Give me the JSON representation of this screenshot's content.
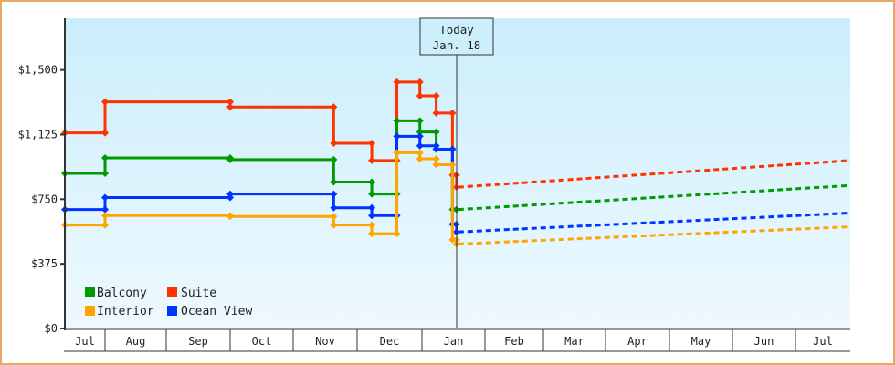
{
  "chart_data": {
    "type": "line",
    "title": "",
    "xlabel": "",
    "ylabel": "",
    "ylim": [
      0,
      1800
    ],
    "yticks": [
      {
        "label": "$0",
        "value": 0
      },
      {
        "label": "$375",
        "value": 375
      },
      {
        "label": "$750",
        "value": 750
      },
      {
        "label": "$1,125",
        "value": 1125
      },
      {
        "label": "$1,500",
        "value": 1500
      }
    ],
    "x_months": [
      "Jul",
      "Aug",
      "Sep",
      "Oct",
      "Nov",
      "Dec",
      "Jan",
      "Feb",
      "Mar",
      "Apr",
      "May",
      "Jun",
      "Jul"
    ],
    "today_marker": {
      "line1": "Today",
      "line2": "Jan. 18"
    },
    "legend": [
      {
        "name": "Balcony",
        "color": "#009900"
      },
      {
        "name": "Suite",
        "color": "#ff3300"
      },
      {
        "name": "Interior",
        "color": "#ffa500"
      },
      {
        "name": "Ocean View",
        "color": "#0033ff"
      }
    ],
    "grid": false,
    "series": [
      {
        "name": "Suite",
        "color": "#ff3300",
        "historical": [
          [
            "Jul 1",
            1135
          ],
          [
            "Aug 1",
            1135
          ],
          [
            "Aug 1",
            1315
          ],
          [
            "Oct 1",
            1315
          ],
          [
            "Oct 1",
            1285
          ],
          [
            "Nov 20",
            1285
          ],
          [
            "Nov 20",
            1075
          ],
          [
            "Dec 8",
            1075
          ],
          [
            "Dec 8",
            975
          ],
          [
            "Dec 20",
            975
          ],
          [
            "Dec 20",
            1430
          ],
          [
            "Dec 31",
            1430
          ],
          [
            "Dec 31",
            1350
          ],
          [
            "Jan 8",
            1350
          ],
          [
            "Jan 8",
            1250
          ],
          [
            "Jan 16",
            1250
          ],
          [
            "Jan 16",
            890
          ],
          [
            "Jan 18",
            890
          ],
          [
            "Jan 18",
            820
          ]
        ],
        "forecast_start": [
          "Jan 18",
          820
        ],
        "forecast_end": [
          "Jul 31",
          975
        ]
      },
      {
        "name": "Balcony",
        "color": "#009900",
        "historical": [
          [
            "Jul 1",
            900
          ],
          [
            "Aug 1",
            900
          ],
          [
            "Aug 1",
            990
          ],
          [
            "Oct 1",
            990
          ],
          [
            "Oct 1",
            980
          ],
          [
            "Nov 20",
            980
          ],
          [
            "Nov 20",
            850
          ],
          [
            "Dec 8",
            850
          ],
          [
            "Dec 8",
            780
          ],
          [
            "Dec 20",
            780
          ],
          [
            "Dec 20",
            1205
          ],
          [
            "Dec 31",
            1205
          ],
          [
            "Dec 31",
            1140
          ],
          [
            "Jan 8",
            1140
          ],
          [
            "Jan 8",
            1040
          ],
          [
            "Jan 16",
            1040
          ],
          [
            "Jan 16",
            690
          ],
          [
            "Jan 18",
            690
          ]
        ],
        "forecast_start": [
          "Jan 18",
          690
        ],
        "forecast_end": [
          "Jul 31",
          830
        ]
      },
      {
        "name": "Ocean View",
        "color": "#0033ff",
        "historical": [
          [
            "Jul 1",
            690
          ],
          [
            "Aug 1",
            690
          ],
          [
            "Aug 1",
            760
          ],
          [
            "Oct 1",
            760
          ],
          [
            "Oct 1",
            780
          ],
          [
            "Nov 20",
            780
          ],
          [
            "Nov 20",
            700
          ],
          [
            "Dec 8",
            700
          ],
          [
            "Dec 8",
            655
          ],
          [
            "Dec 20",
            655
          ],
          [
            "Dec 20",
            1115
          ],
          [
            "Dec 31",
            1115
          ],
          [
            "Dec 31",
            1060
          ],
          [
            "Jan 8",
            1060
          ],
          [
            "Jan 8",
            1040
          ],
          [
            "Jan 16",
            1040
          ],
          [
            "Jan 16",
            605
          ],
          [
            "Jan 18",
            605
          ],
          [
            "Jan 18",
            560
          ]
        ],
        "forecast_start": [
          "Jan 18",
          560
        ],
        "forecast_end": [
          "Jul 31",
          670
        ]
      },
      {
        "name": "Interior",
        "color": "#ffa500",
        "historical": [
          [
            "Jul 1",
            600
          ],
          [
            "Aug 1",
            600
          ],
          [
            "Aug 1",
            655
          ],
          [
            "Oct 1",
            655
          ],
          [
            "Oct 1",
            650
          ],
          [
            "Nov 20",
            650
          ],
          [
            "Nov 20",
            600
          ],
          [
            "Dec 8",
            600
          ],
          [
            "Dec 8",
            550
          ],
          [
            "Dec 20",
            550
          ],
          [
            "Dec 20",
            1020
          ],
          [
            "Dec 31",
            1020
          ],
          [
            "Dec 31",
            985
          ],
          [
            "Jan 8",
            985
          ],
          [
            "Jan 8",
            950
          ],
          [
            "Jan 16",
            950
          ],
          [
            "Jan 16",
            515
          ],
          [
            "Jan 18",
            515
          ],
          [
            "Jan 18",
            490
          ]
        ],
        "forecast_start": [
          "Jan 18",
          490
        ],
        "forecast_end": [
          "Jul 31",
          590
        ]
      }
    ]
  }
}
